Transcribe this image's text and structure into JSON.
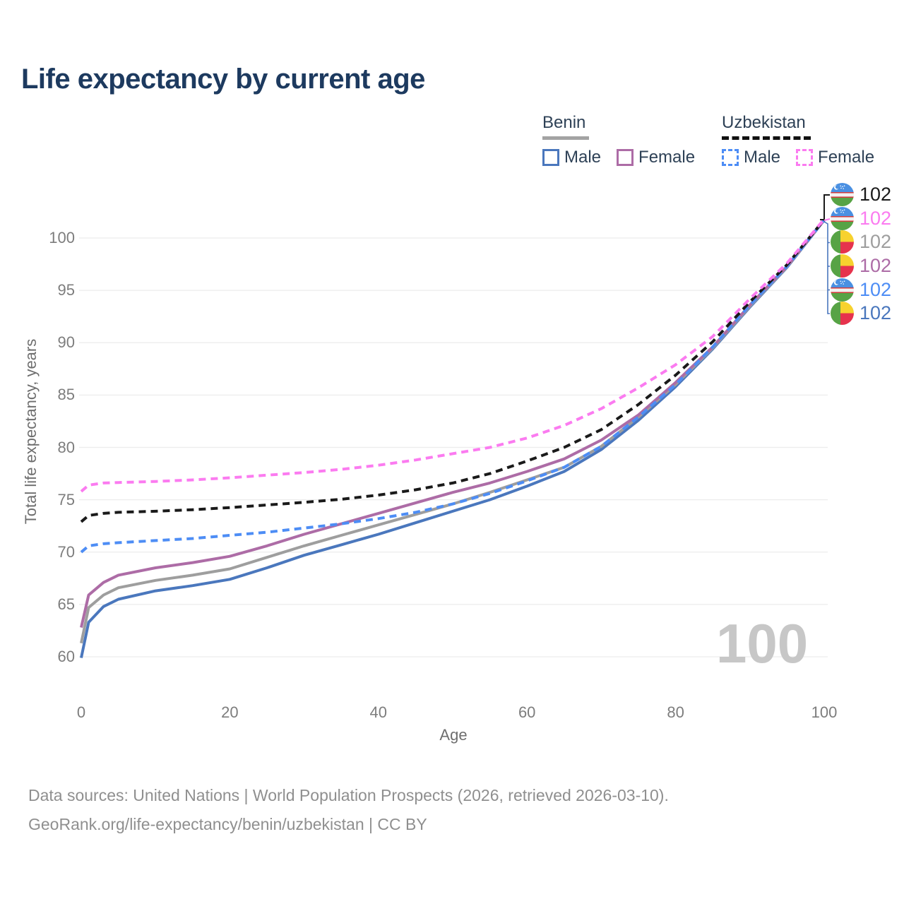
{
  "title": "Life expectancy by current age",
  "legend": {
    "groups": [
      {
        "country": "Benin",
        "line_style": "solid",
        "underline_color": "#a3a3a3",
        "items": [
          {
            "label": "Male",
            "color": "#4a77bd",
            "dashed": false
          },
          {
            "label": "Female",
            "color": "#ad6ca6",
            "dashed": false
          }
        ]
      },
      {
        "country": "Uzbekistan",
        "line_style": "dashed",
        "underline_color": "#111111",
        "items": [
          {
            "label": "Male",
            "color": "#4d8df5",
            "dashed": true
          },
          {
            "label": "Female",
            "color": "#fb7bf0",
            "dashed": true
          }
        ]
      }
    ]
  },
  "axes": {
    "x_title": "Age",
    "y_title": "Total life expectancy, years"
  },
  "watermark_age": "100",
  "end_labels": [
    {
      "flag": "uzbekistan",
      "value": "102",
      "color": "#1a1a1a"
    },
    {
      "flag": "uzbekistan",
      "value": "102",
      "color": "#fb7bf0"
    },
    {
      "flag": "benin",
      "value": "102",
      "color": "#9e9e9e"
    },
    {
      "flag": "benin",
      "value": "102",
      "color": "#ad6ca6"
    },
    {
      "flag": "uzbekistan",
      "value": "102",
      "color": "#4d8df5"
    },
    {
      "flag": "benin",
      "value": "102",
      "color": "#4a77bd"
    }
  ],
  "footer": {
    "line1": "Data sources: United Nations | World Population Prospects (2026, retrieved 2026-03-10).",
    "line2": "GeoRank.org/life-expectancy/benin/uzbekistan | CC BY"
  },
  "colors": {
    "title_text": "#1d3a5f",
    "benin_male": "#4a77bd",
    "benin_female": "#ad6ca6",
    "benin_total": "#9e9e9e",
    "uzbekistan_male": "#4d8df5",
    "uzbekistan_female": "#fb7bf0",
    "uzbekistan_total": "#1a1a1a",
    "gridline": "#ececec",
    "tick_text": "#7d7d7d",
    "watermark": "#c7c7c7"
  },
  "chart_data": {
    "type": "line",
    "title": "Life expectancy by current age",
    "xlabel": "Age",
    "ylabel": "Total life expectancy, years",
    "xlim": [
      0,
      100
    ],
    "ylim": [
      60,
      102
    ],
    "xticks": [
      0,
      20,
      40,
      60,
      80,
      100
    ],
    "yticks": [
      60,
      65,
      70,
      75,
      80,
      85,
      90,
      95,
      100
    ],
    "grid": "horizontal",
    "legend_position": "top-right",
    "end_value_label": "102",
    "x": [
      0,
      1,
      3,
      5,
      10,
      15,
      20,
      25,
      30,
      35,
      40,
      45,
      50,
      55,
      60,
      65,
      70,
      75,
      80,
      85,
      90,
      95,
      100
    ],
    "series": [
      {
        "id": "benin-male",
        "name": "Benin Male",
        "color": "#4a77bd",
        "dashed": false,
        "y": [
          59.9,
          63.3,
          64.8,
          65.5,
          66.3,
          66.8,
          67.4,
          68.5,
          69.7,
          70.7,
          71.7,
          72.8,
          73.9,
          75.0,
          76.3,
          77.7,
          79.8,
          82.6,
          85.8,
          89.4,
          93.4,
          97.2,
          101.7
        ]
      },
      {
        "id": "benin-total",
        "name": "Benin Both sexes",
        "color": "#9e9e9e",
        "dashed": false,
        "y": [
          61.3,
          64.7,
          65.9,
          66.6,
          67.3,
          67.8,
          68.4,
          69.5,
          70.6,
          71.6,
          72.6,
          73.6,
          74.6,
          75.7,
          76.9,
          78.1,
          80.1,
          82.9,
          86.0,
          89.5,
          93.5,
          97.25,
          101.72
        ]
      },
      {
        "id": "benin-female",
        "name": "Benin Female",
        "color": "#ad6ca6",
        "dashed": false,
        "y": [
          62.8,
          65.9,
          67.1,
          67.8,
          68.5,
          69.0,
          69.6,
          70.6,
          71.7,
          72.7,
          73.7,
          74.7,
          75.7,
          76.6,
          77.7,
          78.9,
          80.7,
          83.1,
          86.2,
          89.6,
          93.6,
          97.3,
          101.75
        ]
      },
      {
        "id": "uzbekistan-male",
        "name": "Uzbekistan Male",
        "color": "#4d8df5",
        "dashed": true,
        "y": [
          70.0,
          70.6,
          70.8,
          70.9,
          71.1,
          71.3,
          71.6,
          71.9,
          72.3,
          72.7,
          73.2,
          73.8,
          74.6,
          75.6,
          76.8,
          78.1,
          80.1,
          82.9,
          86.0,
          89.6,
          93.6,
          97.3,
          101.72
        ]
      },
      {
        "id": "uzbekistan-total",
        "name": "Uzbekistan Both sexes",
        "color": "#1a1a1a",
        "dashed": true,
        "y": [
          72.9,
          73.5,
          73.7,
          73.8,
          73.9,
          74.05,
          74.25,
          74.5,
          74.75,
          75.05,
          75.45,
          75.95,
          76.6,
          77.5,
          78.7,
          80.0,
          81.7,
          84.1,
          86.9,
          90.1,
          93.9,
          97.45,
          101.75
        ]
      },
      {
        "id": "uzbekistan-female",
        "name": "Uzbekistan Female",
        "color": "#fb7bf0",
        "dashed": true,
        "y": [
          75.8,
          76.4,
          76.6,
          76.65,
          76.75,
          76.9,
          77.1,
          77.35,
          77.6,
          77.9,
          78.3,
          78.8,
          79.4,
          80.0,
          80.9,
          82.1,
          83.7,
          85.7,
          87.9,
          90.6,
          94.2,
          97.6,
          101.8
        ]
      }
    ]
  }
}
